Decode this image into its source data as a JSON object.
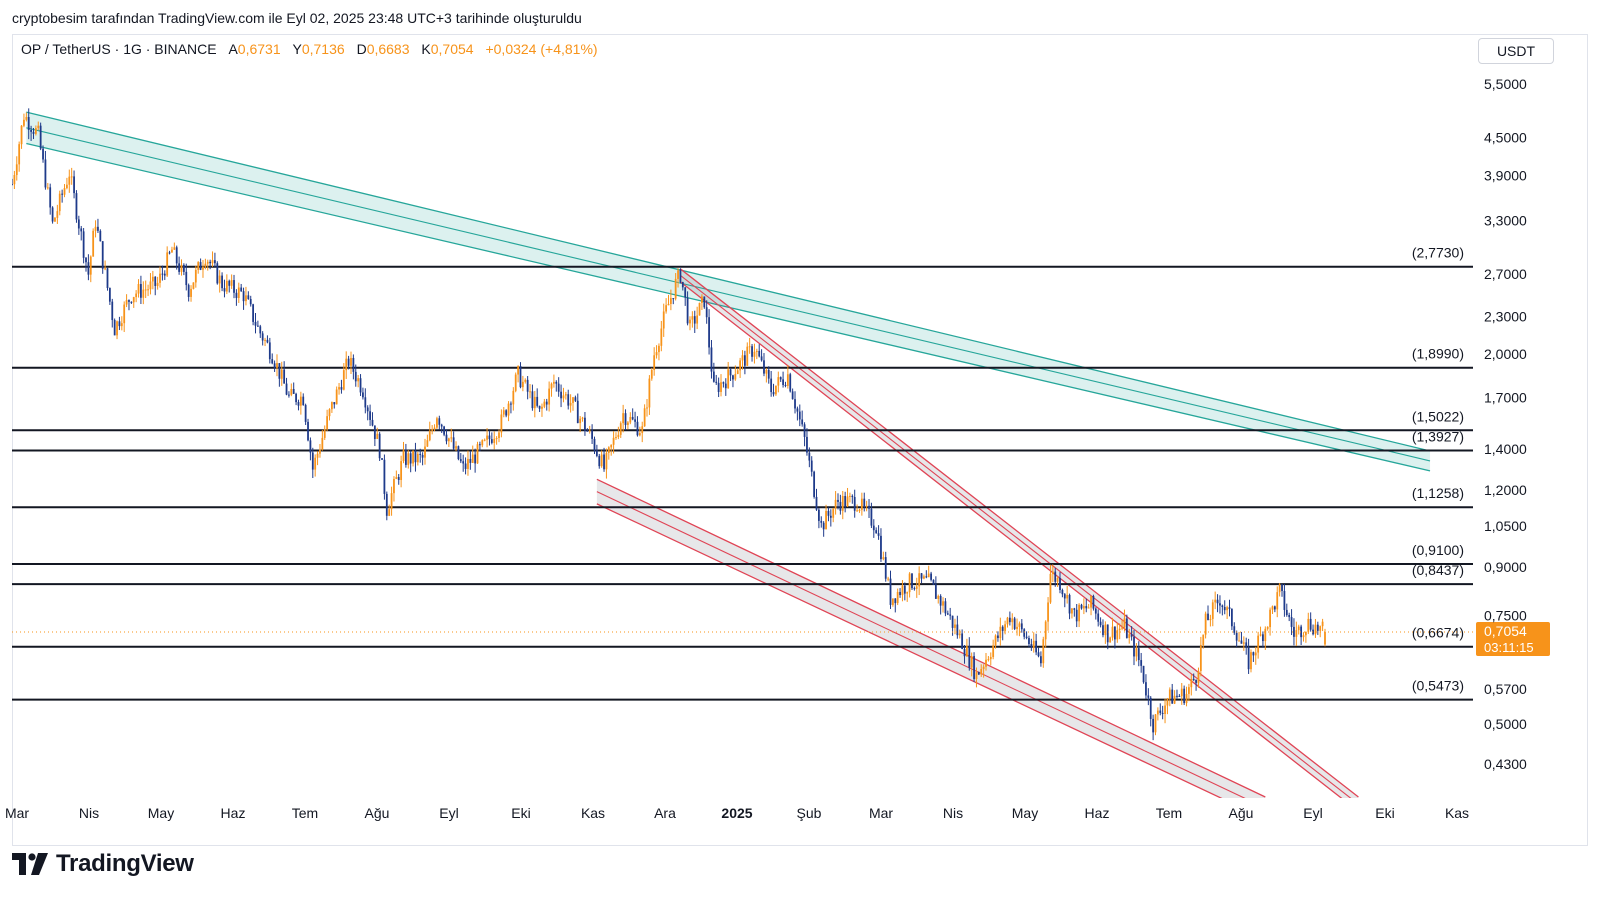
{
  "byline": "cryptobesim tarafından TradingView.com ile Eyl 02, 2025 23:48 UTC+3 tarihinde oluşturuldu",
  "legend": {
    "symbol": "OP / TetherUS · 1G · BINANCE",
    "open_label": "A",
    "open": "0,6731",
    "high_label": "Y",
    "high": "0,7136",
    "low_label": "D",
    "low": "0,6683",
    "close_label": "K",
    "close": "0,7054",
    "change": "+0,0324 (+4,81%)"
  },
  "currency": "USDT",
  "brand": "TradingView",
  "colors": {
    "up": "#f7931a",
    "down": "#1e3a8a",
    "green_channel": "#26a69a",
    "red_channel": "#e04455",
    "level": "#131722",
    "price_tag": "#f7931a"
  },
  "chart_data": {
    "type": "candlestick",
    "scale": "log",
    "x_axis": {
      "labels": [
        "Mar",
        "Nis",
        "May",
        "Haz",
        "Tem",
        "Ağu",
        "Eyl",
        "Eki",
        "Kas",
        "Ara",
        "2025",
        "Şub",
        "Mar",
        "Nis",
        "May",
        "Haz",
        "Tem",
        "Ağu",
        "Eyl",
        "Eki",
        "Kas"
      ]
    },
    "y_axis": {
      "ticks": [
        "5,5000",
        "4,5000",
        "3,9000",
        "3,3000",
        "2,7000",
        "2,3000",
        "2,0000",
        "1,7000",
        "1,4000",
        "1,2000",
        "1,0500",
        "0,9000",
        "0,7500",
        "0,5700",
        "0,5000",
        "0,4300"
      ],
      "tick_values": [
        5.5,
        4.5,
        3.9,
        3.3,
        2.7,
        2.3,
        2.0,
        1.7,
        1.4,
        1.2,
        1.05,
        0.9,
        0.75,
        0.57,
        0.5,
        0.43
      ]
    },
    "horizontal_levels": [
      {
        "label": "(2,7730)",
        "value": 2.773
      },
      {
        "label": "(1,8990)",
        "value": 1.899
      },
      {
        "label": "(1,5022)",
        "value": 1.5022
      },
      {
        "label": "(1,3927)",
        "value": 1.3927
      },
      {
        "label": "(1,1258)",
        "value": 1.1258
      },
      {
        "label": "(0,9100)",
        "value": 0.91
      },
      {
        "label": "(0,8437)",
        "value": 0.8437
      },
      {
        "label": "(0,6674)",
        "value": 0.6674
      },
      {
        "label": "(0,5473)",
        "value": 0.5473
      }
    ],
    "last_price": {
      "label": "0,7054",
      "value": 0.7054,
      "countdown": "03:11:15"
    },
    "trend_channels": [
      {
        "color": "green",
        "start": {
          "date": "2024-03-07",
          "upper": 4.95,
          "lower": 4.4
        },
        "end": {
          "date": "2025-10-16",
          "upper": 1.39,
          "lower": 1.29
        }
      },
      {
        "color": "red",
        "start": {
          "date": "2024-12-06",
          "upper": 2.75,
          "lower": 2.62
        },
        "end": {
          "date": "2025-09-16",
          "upper": 0.38,
          "lower": 0.36
        }
      },
      {
        "color": "red",
        "start": {
          "date": "2024-11-01",
          "upper": 1.25,
          "lower": 1.14
        },
        "end": {
          "date": "2025-08-08",
          "upper": 0.38,
          "lower": 0.35
        }
      }
    ],
    "price_path": [
      [
        "2024-03-01",
        3.78
      ],
      [
        "2024-03-06",
        4.9
      ],
      [
        "2024-03-12",
        4.55
      ],
      [
        "2024-03-18",
        3.25
      ],
      [
        "2024-03-25",
        3.95
      ],
      [
        "2024-04-02",
        2.7
      ],
      [
        "2024-04-05",
        3.3
      ],
      [
        "2024-04-13",
        2.2
      ],
      [
        "2024-04-20",
        2.5
      ],
      [
        "2024-05-01",
        2.6
      ],
      [
        "2024-05-07",
        2.95
      ],
      [
        "2024-05-14",
        2.55
      ],
      [
        "2024-05-21",
        2.9
      ],
      [
        "2024-05-28",
        2.6
      ],
      [
        "2024-06-06",
        2.5
      ],
      [
        "2024-06-12",
        2.2
      ],
      [
        "2024-06-18",
        2.0
      ],
      [
        "2024-06-25",
        1.7
      ],
      [
        "2024-07-01",
        1.7
      ],
      [
        "2024-07-05",
        1.3
      ],
      [
        "2024-07-12",
        1.6
      ],
      [
        "2024-07-20",
        1.95
      ],
      [
        "2024-07-26",
        1.75
      ],
      [
        "2024-08-02",
        1.4
      ],
      [
        "2024-08-05",
        1.12
      ],
      [
        "2024-08-12",
        1.35
      ],
      [
        "2024-08-20",
        1.35
      ],
      [
        "2024-08-26",
        1.6
      ],
      [
        "2024-09-06",
        1.3
      ],
      [
        "2024-09-15",
        1.42
      ],
      [
        "2024-09-22",
        1.55
      ],
      [
        "2024-09-29",
        1.85
      ],
      [
        "2024-10-08",
        1.6
      ],
      [
        "2024-10-14",
        1.8
      ],
      [
        "2024-10-22",
        1.65
      ],
      [
        "2024-10-30",
        1.45
      ],
      [
        "2024-11-04",
        1.3
      ],
      [
        "2024-11-12",
        1.6
      ],
      [
        "2024-11-20",
        1.5
      ],
      [
        "2024-11-25",
        2.0
      ],
      [
        "2024-11-30",
        2.35
      ],
      [
        "2024-12-04",
        2.6
      ],
      [
        "2024-12-06",
        2.7
      ],
      [
        "2024-12-10",
        2.2
      ],
      [
        "2024-12-16",
        2.45
      ],
      [
        "2024-12-20",
        1.75
      ],
      [
        "2024-12-27",
        1.85
      ],
      [
        "2025-01-06",
        2.05
      ],
      [
        "2025-01-13",
        1.75
      ],
      [
        "2025-01-20",
        1.85
      ],
      [
        "2025-01-27",
        1.45
      ],
      [
        "2025-02-03",
        1.05
      ],
      [
        "2025-02-10",
        1.15
      ],
      [
        "2025-02-18",
        1.15
      ],
      [
        "2025-02-26",
        1.05
      ],
      [
        "2025-03-04",
        0.8
      ],
      [
        "2025-03-12",
        0.85
      ],
      [
        "2025-03-20",
        0.85
      ],
      [
        "2025-03-26",
        0.78
      ],
      [
        "2025-04-03",
        0.68
      ],
      [
        "2025-04-09",
        0.6
      ],
      [
        "2025-04-15",
        0.66
      ],
      [
        "2025-04-23",
        0.75
      ],
      [
        "2025-05-01",
        0.68
      ],
      [
        "2025-05-06",
        0.63
      ],
      [
        "2025-05-10",
        0.88
      ],
      [
        "2025-05-14",
        0.85
      ],
      [
        "2025-05-20",
        0.75
      ],
      [
        "2025-05-27",
        0.78
      ],
      [
        "2025-06-03",
        0.7
      ],
      [
        "2025-06-10",
        0.72
      ],
      [
        "2025-06-17",
        0.62
      ],
      [
        "2025-06-22",
        0.5
      ],
      [
        "2025-06-28",
        0.55
      ],
      [
        "2025-07-06",
        0.56
      ],
      [
        "2025-07-10",
        0.6
      ],
      [
        "2025-07-14",
        0.73
      ],
      [
        "2025-07-20",
        0.8
      ],
      [
        "2025-07-26",
        0.72
      ],
      [
        "2025-08-01",
        0.63
      ],
      [
        "2025-08-08",
        0.72
      ],
      [
        "2025-08-14",
        0.82
      ],
      [
        "2025-08-20",
        0.7
      ],
      [
        "2025-08-26",
        0.73
      ],
      [
        "2025-09-02",
        0.7054
      ]
    ]
  }
}
